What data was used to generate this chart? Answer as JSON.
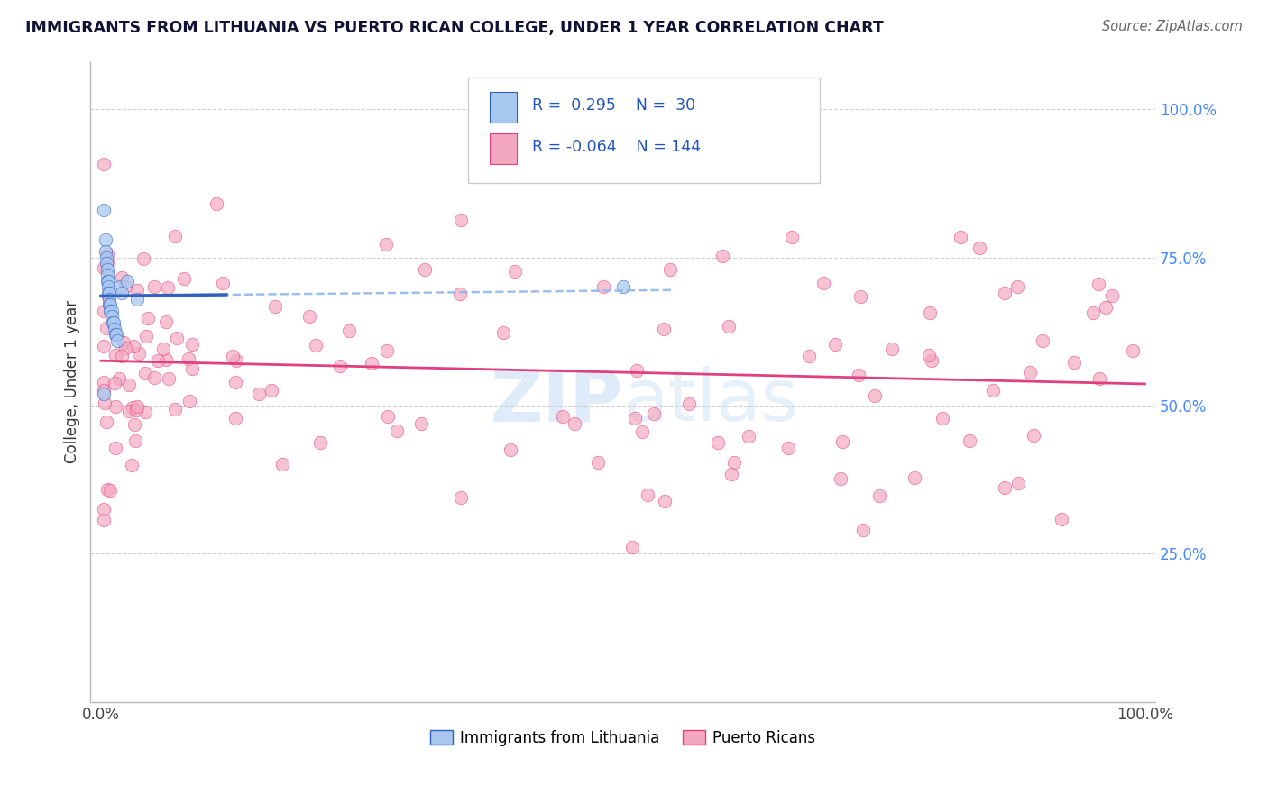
{
  "title": "IMMIGRANTS FROM LITHUANIA VS PUERTO RICAN COLLEGE, UNDER 1 YEAR CORRELATION CHART",
  "source": "Source: ZipAtlas.com",
  "ylabel": "College, Under 1 year",
  "blue_R": 0.295,
  "blue_N": 30,
  "pink_R": -0.064,
  "pink_N": 144,
  "blue_color": "#a8c8f0",
  "pink_color": "#f4a8c0",
  "blue_line_color": "#3060c0",
  "pink_line_color": "#e04080",
  "dashed_line_color": "#90b8e8",
  "watermark_color": "#b8d4f0",
  "background_color": "#ffffff",
  "grid_color": "#d0d0d0",
  "ytick_color": "#4488ff",
  "title_color": "#111133",
  "source_color": "#666666",
  "ylabel_color": "#333333"
}
